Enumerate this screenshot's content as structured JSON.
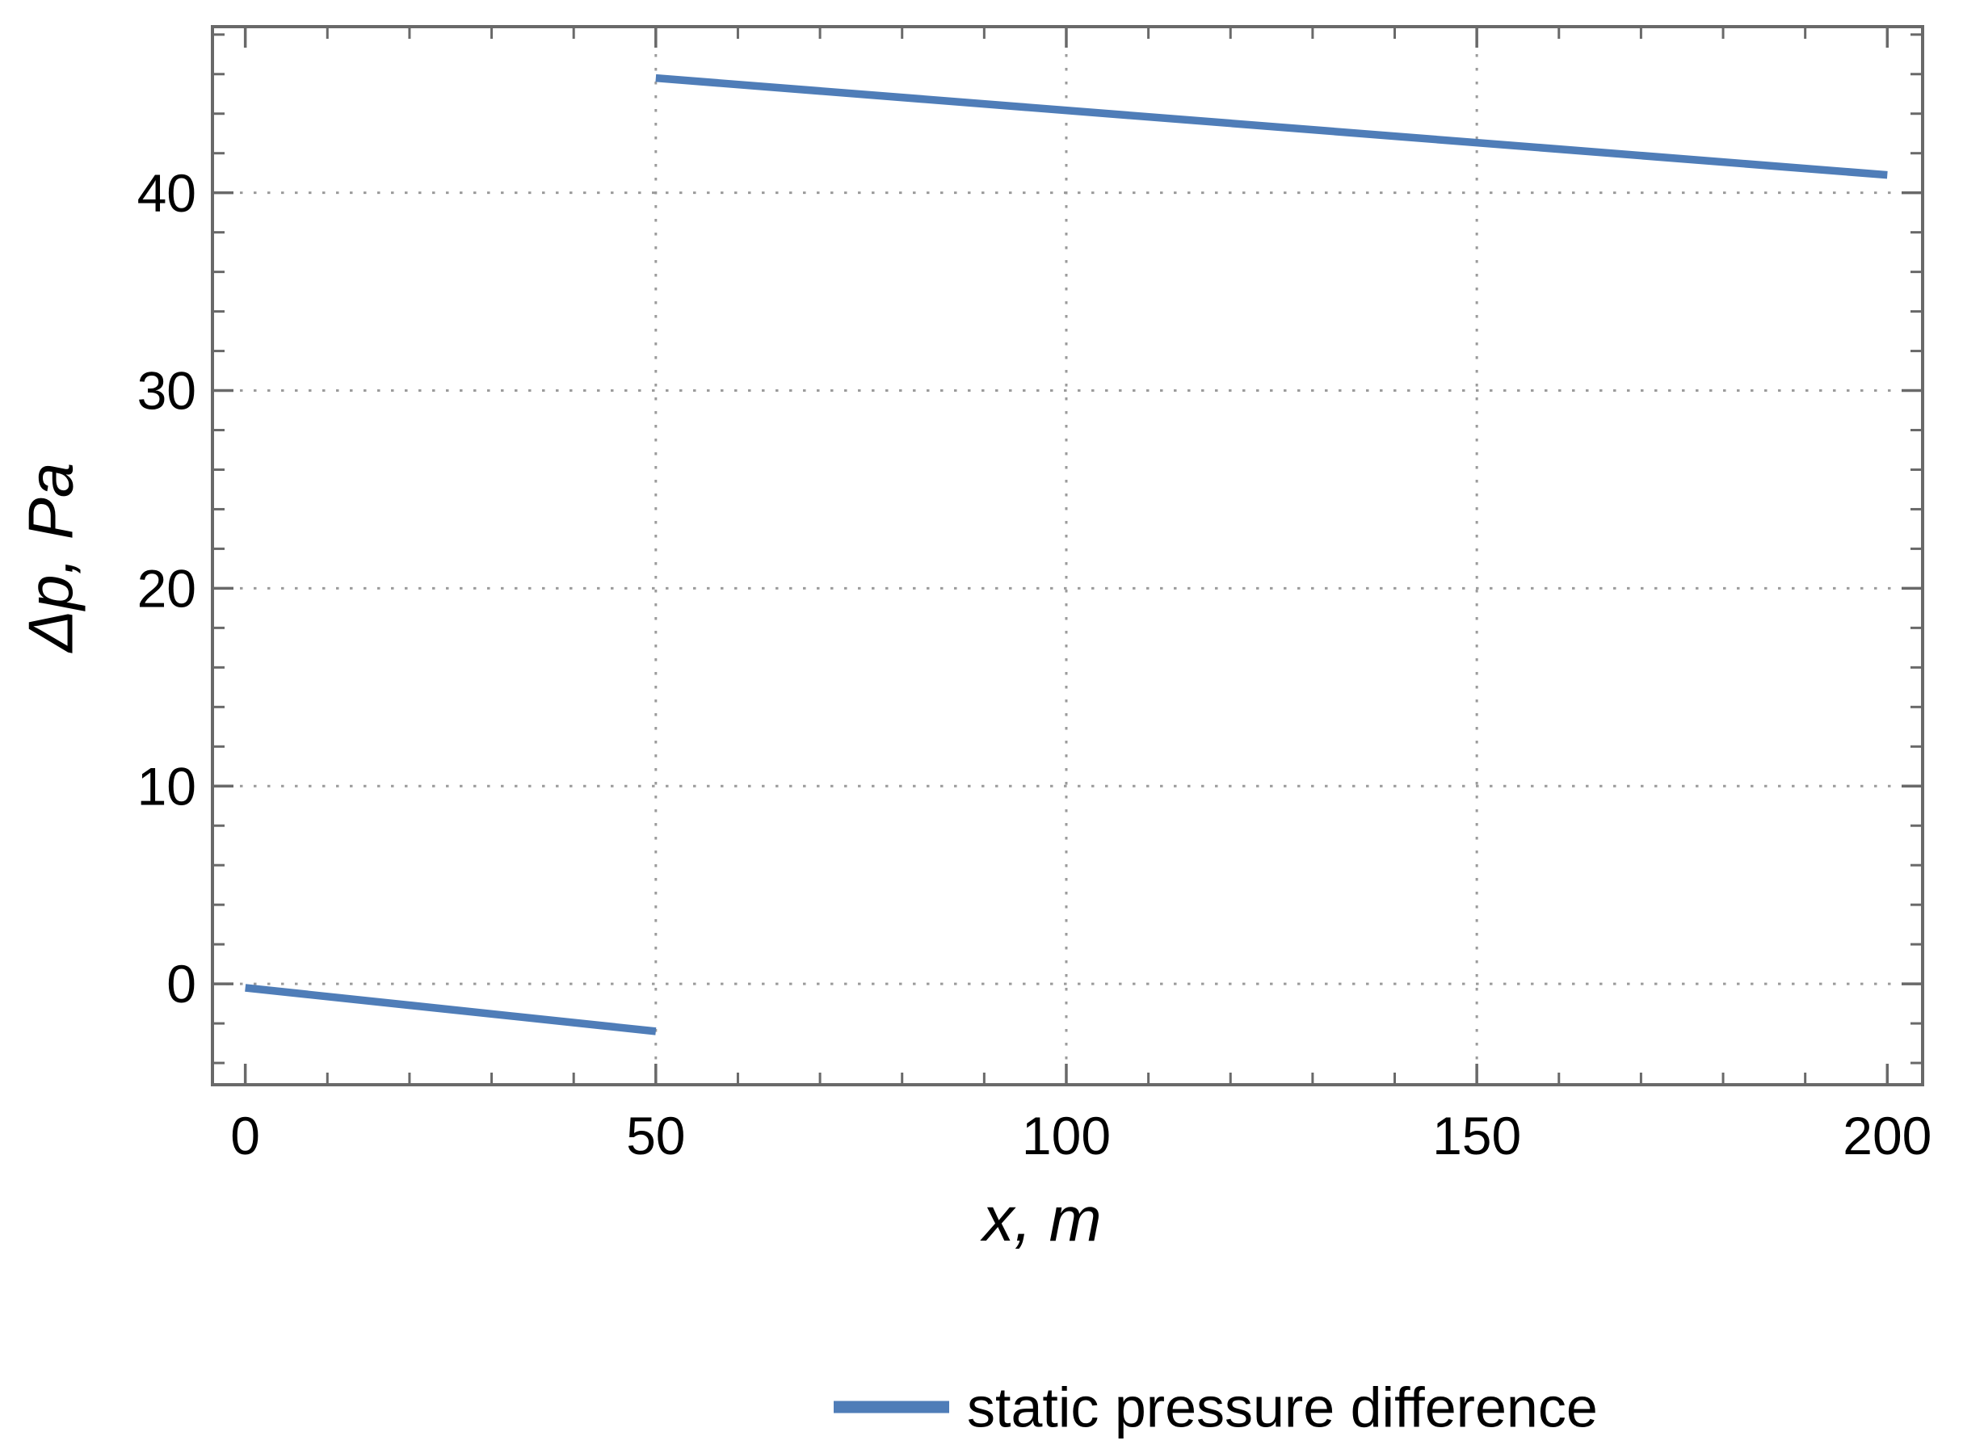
{
  "figure": {
    "background": "#ffffff"
  },
  "chart_data": {
    "type": "line",
    "title": "",
    "xlabel": "x, m",
    "ylabel": "Δp, Pa",
    "xlim": [
      -4,
      204.3
    ],
    "ylim": [
      -5.1,
      48.4
    ],
    "x_major_ticks": [
      0,
      50,
      100,
      150,
      200
    ],
    "x_minor_tick_step": 10,
    "y_major_ticks": [
      0,
      10,
      20,
      30,
      40
    ],
    "y_minor_tick_step": 2,
    "x_gridlines": [
      50,
      100,
      150
    ],
    "y_gridlines": [
      0,
      10,
      20,
      30,
      40
    ],
    "grid_style": "dotted",
    "legend_position": "below-plot",
    "colors": {
      "line": "#4f7db8",
      "frame": "#696969",
      "grid": "#9b9b9b",
      "text": "#000000"
    },
    "series": [
      {
        "name": "static pressure difference",
        "color": "#4f7db8",
        "discontinuity_at_x": 50,
        "segments": [
          {
            "x": [
              0,
              50
            ],
            "y": [
              -0.2,
              -2.4
            ]
          },
          {
            "x": [
              50,
              200
            ],
            "y": [
              45.8,
              40.9
            ]
          }
        ]
      }
    ]
  }
}
